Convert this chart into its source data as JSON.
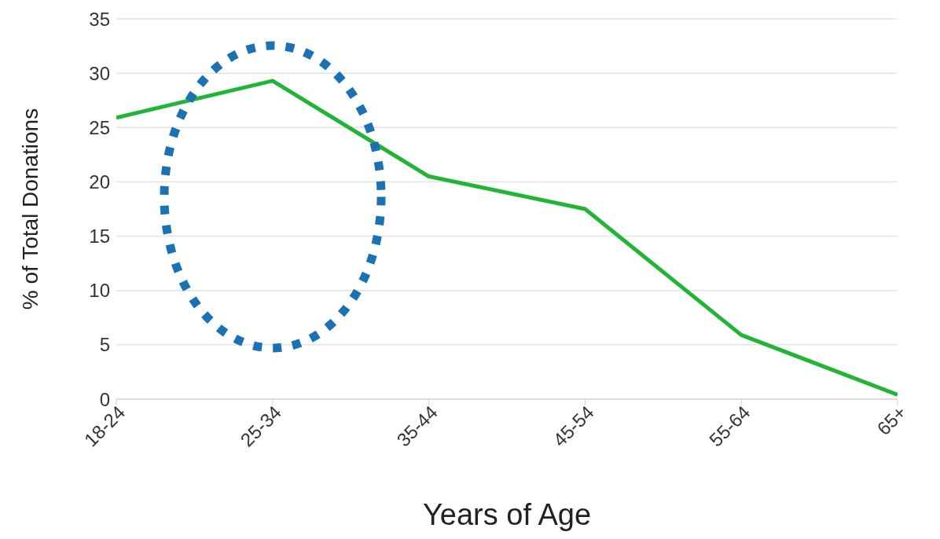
{
  "chart_data": {
    "type": "line",
    "xlabel": "Years of Age",
    "ylabel": "% of Total Donations",
    "categories": [
      "18-24",
      "25-34",
      "35-44",
      "45-54",
      "55-64",
      "65+"
    ],
    "series": [
      {
        "color": "#22b535",
        "values": [
          25.9,
          29.3,
          20.5,
          17.5,
          5.9,
          0.4
        ]
      }
    ],
    "ylim": [
      0,
      35
    ],
    "yticks": [
      0,
      5,
      10,
      15,
      20,
      25,
      30,
      35
    ],
    "grid": "y",
    "marker": "none",
    "line_style": "solid"
  }
}
